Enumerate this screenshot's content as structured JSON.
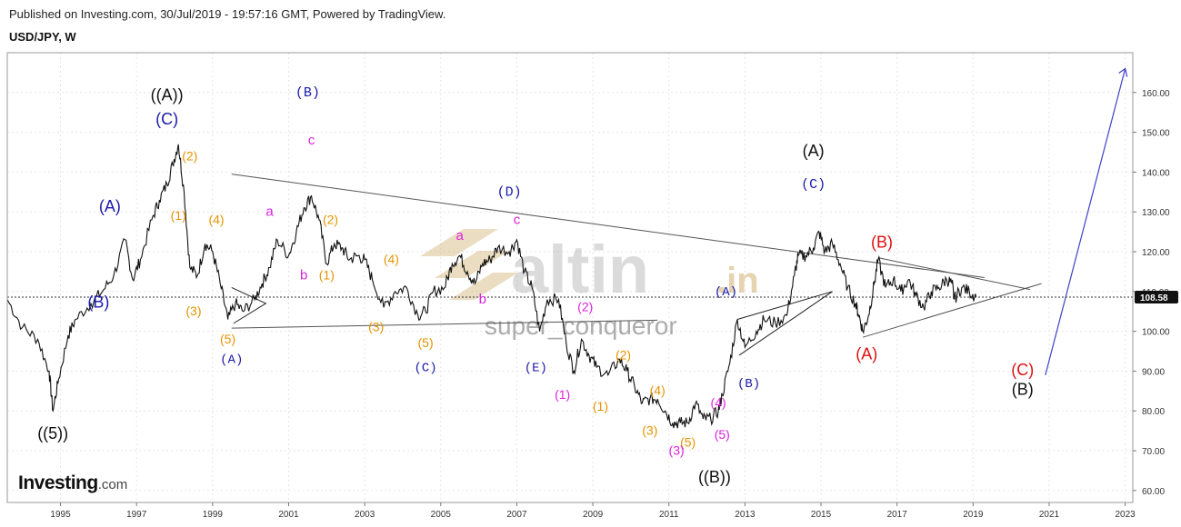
{
  "header": {
    "published": "Published on Investing.com, 30/Jul/2019 - 19:57:16 GMT, Powered by TradingView.",
    "symbol": "USD/JPY, W"
  },
  "logo": {
    "brand": "Investing",
    "domain": ".com"
  },
  "watermark": {
    "main": "altin",
    "tld": ".in",
    "sub": "super_conqueror"
  },
  "colors": {
    "price": "#111111",
    "black_label": "#111111",
    "blue_label": "#1a1aaa",
    "orange_label": "#e59400",
    "magenta_label": "#dd22dd",
    "red_label": "#dd1111",
    "trendline": "#555555",
    "projection": "#4040c8"
  },
  "chart_data": {
    "type": "line",
    "x_axis": {
      "ticks": [
        "1995",
        "1997",
        "1999",
        "2001",
        "2003",
        "2005",
        "2007",
        "2009",
        "2011",
        "2013",
        "2015",
        "2017",
        "2019",
        "2021",
        "2023"
      ],
      "range": [
        1994.1,
        2023.7
      ]
    },
    "y_axis": {
      "ticks": [
        "60.00",
        "70.00",
        "80.00",
        "90.00",
        "100.00",
        "110.00",
        "120.00",
        "130.00",
        "140.00",
        "150.00",
        "160.00"
      ],
      "range": [
        57,
        170
      ],
      "position": "right"
    },
    "last_price": {
      "value": 108.58,
      "label": "108.58"
    },
    "series": [
      {
        "points": [
          [
            1994.1,
            108
          ],
          [
            1994.5,
            101
          ],
          [
            1994.9,
            98
          ],
          [
            1995.2,
            90
          ],
          [
            1995.3,
            80
          ],
          [
            1995.45,
            88
          ],
          [
            1995.7,
            99
          ],
          [
            1995.9,
            103
          ],
          [
            1996.3,
            107
          ],
          [
            1996.6,
            110
          ],
          [
            1996.9,
            114
          ],
          [
            1997.2,
            123
          ],
          [
            1997.4,
            113
          ],
          [
            1997.6,
            118
          ],
          [
            1997.9,
            128
          ],
          [
            1998.1,
            133
          ],
          [
            1998.3,
            137
          ],
          [
            1998.45,
            142
          ],
          [
            1998.6,
            147
          ],
          [
            1998.75,
            135
          ],
          [
            1998.9,
            116
          ],
          [
            1999.1,
            114
          ],
          [
            1999.3,
            122
          ],
          [
            1999.5,
            120
          ],
          [
            1999.7,
            112
          ],
          [
            1999.9,
            103
          ],
          [
            2000.1,
            107
          ],
          [
            2000.3,
            105
          ],
          [
            2000.6,
            108
          ],
          [
            2000.8,
            112
          ],
          [
            2001.0,
            116
          ],
          [
            2001.2,
            123
          ],
          [
            2001.5,
            119
          ],
          [
            2001.7,
            125
          ],
          [
            2001.9,
            131
          ],
          [
            2002.1,
            134
          ],
          [
            2002.3,
            128
          ],
          [
            2002.5,
            117
          ],
          [
            2002.7,
            122
          ],
          [
            2002.9,
            121
          ],
          [
            2003.1,
            118
          ],
          [
            2003.3,
            119
          ],
          [
            2003.5,
            118
          ],
          [
            2003.7,
            113
          ],
          [
            2004.0,
            106
          ],
          [
            2004.3,
            110
          ],
          [
            2004.6,
            111
          ],
          [
            2004.9,
            104
          ],
          [
            2005.1,
            105
          ],
          [
            2005.3,
            110
          ],
          [
            2005.6,
            111
          ],
          [
            2005.8,
            117
          ],
          [
            2006.0,
            119
          ],
          [
            2006.2,
            115
          ],
          [
            2006.4,
            112
          ],
          [
            2006.6,
            117
          ],
          [
            2006.8,
            118
          ],
          [
            2007.0,
            121
          ],
          [
            2007.3,
            120
          ],
          [
            2007.5,
            123
          ],
          [
            2007.7,
            115
          ],
          [
            2007.9,
            111
          ],
          [
            2008.1,
            100
          ],
          [
            2008.3,
            108
          ],
          [
            2008.6,
            108
          ],
          [
            2008.8,
            97
          ],
          [
            2009.0,
            90
          ],
          [
            2009.2,
            98
          ],
          [
            2009.4,
            94
          ],
          [
            2009.6,
            91
          ],
          [
            2009.9,
            89
          ],
          [
            2010.2,
            93
          ],
          [
            2010.4,
            90
          ],
          [
            2010.6,
            86
          ],
          [
            2010.8,
            82
          ],
          [
            2011.0,
            83
          ],
          [
            2011.2,
            83
          ],
          [
            2011.4,
            80
          ],
          [
            2011.6,
            77
          ],
          [
            2011.8,
            77
          ],
          [
            2012.0,
            77
          ],
          [
            2012.2,
            82
          ],
          [
            2012.4,
            78
          ],
          [
            2012.6,
            78
          ],
          [
            2012.8,
            80
          ],
          [
            2012.9,
            84
          ],
          [
            2013.1,
            92
          ],
          [
            2013.3,
            103
          ],
          [
            2013.5,
            96
          ],
          [
            2013.8,
            100
          ],
          [
            2014.0,
            103
          ],
          [
            2014.3,
            102
          ],
          [
            2014.6,
            104
          ],
          [
            2014.8,
            114
          ],
          [
            2014.9,
            119
          ],
          [
            2015.1,
            119
          ],
          [
            2015.3,
            121
          ],
          [
            2015.45,
            125
          ],
          [
            2015.6,
            120
          ],
          [
            2015.8,
            122
          ],
          [
            2016.0,
            117
          ],
          [
            2016.2,
            111
          ],
          [
            2016.4,
            107
          ],
          [
            2016.5,
            104
          ],
          [
            2016.6,
            100
          ],
          [
            2016.75,
            104
          ],
          [
            2016.9,
            112
          ],
          [
            2017.0,
            118
          ],
          [
            2017.2,
            111
          ],
          [
            2017.4,
            113
          ],
          [
            2017.6,
            110
          ],
          [
            2017.8,
            113
          ],
          [
            2018.0,
            109
          ],
          [
            2018.2,
            106
          ],
          [
            2018.4,
            110
          ],
          [
            2018.6,
            111
          ],
          [
            2018.8,
            113
          ],
          [
            2018.95,
            112
          ],
          [
            2019.0,
            108
          ],
          [
            2019.2,
            111
          ],
          [
            2019.4,
            110
          ],
          [
            2019.58,
            108.6
          ]
        ]
      }
    ],
    "trendlines": [
      [
        [
          2000.0,
          139.5
        ],
        [
          2019.8,
          113.5
        ]
      ],
      [
        [
          2000.0,
          100.8
        ],
        [
          2011.2,
          102.8
        ]
      ],
      [
        [
          2017.0,
          118.5
        ],
        [
          2021.0,
          110.5
        ]
      ],
      [
        [
          2016.6,
          98.5
        ],
        [
          2021.3,
          112.0
        ]
      ]
    ],
    "projection": [
      [
        2021.4,
        89
      ],
      [
        2023.5,
        166
      ]
    ],
    "wave_labels": [
      {
        "t": "((A))",
        "x": 1998.3,
        "y": 158,
        "c": "black_label",
        "s": 18
      },
      {
        "t": "(C)",
        "x": 1998.3,
        "y": 152,
        "c": "blue_label",
        "s": 18
      },
      {
        "t": "(A)",
        "x": 1996.8,
        "y": 130,
        "c": "blue_label",
        "s": 18
      },
      {
        "t": "(B)",
        "x": 1996.5,
        "y": 106,
        "c": "blue_label",
        "s": 18
      },
      {
        "t": "((5))",
        "x": 1995.3,
        "y": 73,
        "c": "black_label",
        "s": 18
      },
      {
        "t": "(2)",
        "x": 1998.9,
        "y": 143,
        "c": "orange_label",
        "s": 14
      },
      {
        "t": "(1)",
        "x": 1998.6,
        "y": 128,
        "c": "orange_label",
        "s": 14
      },
      {
        "t": "(4)",
        "x": 1999.6,
        "y": 127,
        "c": "orange_label",
        "s": 14
      },
      {
        "t": "(3)",
        "x": 1999.0,
        "y": 104,
        "c": "orange_label",
        "s": 14
      },
      {
        "t": "(5)",
        "x": 1999.9,
        "y": 97,
        "c": "orange_label",
        "s": 14
      },
      {
        "t": "(A)",
        "x": 2000.0,
        "y": 92,
        "c": "blue_label",
        "s": 14,
        "mono": true
      },
      {
        "t": "a",
        "x": 2001.0,
        "y": 129,
        "c": "magenta_label",
        "s": 15
      },
      {
        "t": "b",
        "x": 2001.9,
        "y": 113,
        "c": "magenta_label",
        "s": 15
      },
      {
        "t": "(B)",
        "x": 2002.0,
        "y": 159,
        "c": "blue_label",
        "s": 15,
        "mono": true
      },
      {
        "t": "c",
        "x": 2002.1,
        "y": 147,
        "c": "magenta_label",
        "s": 15
      },
      {
        "t": "(2)",
        "x": 2002.6,
        "y": 127,
        "c": "orange_label",
        "s": 14
      },
      {
        "t": "(1)",
        "x": 2002.5,
        "y": 113,
        "c": "orange_label",
        "s": 14
      },
      {
        "t": "(4)",
        "x": 2004.2,
        "y": 117,
        "c": "orange_label",
        "s": 14
      },
      {
        "t": "(3)",
        "x": 2003.8,
        "y": 100,
        "c": "orange_label",
        "s": 14
      },
      {
        "t": "(5)",
        "x": 2005.1,
        "y": 96,
        "c": "orange_label",
        "s": 14
      },
      {
        "t": "(C)",
        "x": 2005.1,
        "y": 90,
        "c": "blue_label",
        "s": 14,
        "mono": true
      },
      {
        "t": "a",
        "x": 2006.0,
        "y": 123,
        "c": "magenta_label",
        "s": 15
      },
      {
        "t": "b",
        "x": 2006.6,
        "y": 107,
        "c": "magenta_label",
        "s": 15
      },
      {
        "t": "(D)",
        "x": 2007.3,
        "y": 134,
        "c": "blue_label",
        "s": 15,
        "mono": true
      },
      {
        "t": "c",
        "x": 2007.5,
        "y": 127,
        "c": "magenta_label",
        "s": 15
      },
      {
        "t": "(E)",
        "x": 2008.0,
        "y": 90,
        "c": "blue_label",
        "s": 14,
        "mono": true
      },
      {
        "t": "(2)",
        "x": 2009.3,
        "y": 105,
        "c": "magenta_label",
        "s": 14
      },
      {
        "t": "(1)",
        "x": 2008.7,
        "y": 83,
        "c": "magenta_label",
        "s": 14
      },
      {
        "t": "(2)",
        "x": 2010.3,
        "y": 93,
        "c": "orange_label",
        "s": 14
      },
      {
        "t": "(1)",
        "x": 2009.7,
        "y": 80,
        "c": "orange_label",
        "s": 14
      },
      {
        "t": "(4)",
        "x": 2011.2,
        "y": 84,
        "c": "orange_label",
        "s": 14
      },
      {
        "t": "(3)",
        "x": 2011.0,
        "y": 74,
        "c": "orange_label",
        "s": 14
      },
      {
        "t": "(5)",
        "x": 2012.0,
        "y": 71,
        "c": "orange_label",
        "s": 14
      },
      {
        "t": "(4)",
        "x": 2012.8,
        "y": 81,
        "c": "magenta_label",
        "s": 14
      },
      {
        "t": "(3)",
        "x": 2011.7,
        "y": 69,
        "c": "magenta_label",
        "s": 14
      },
      {
        "t": "(5)",
        "x": 2012.9,
        "y": 73,
        "c": "magenta_label",
        "s": 14
      },
      {
        "t": "((B))",
        "x": 2012.7,
        "y": 62,
        "c": "black_label",
        "s": 18
      },
      {
        "t": "(A)",
        "x": 2013.0,
        "y": 109,
        "c": "blue_label",
        "s": 14,
        "mono": true
      },
      {
        "t": "(B)",
        "x": 2013.6,
        "y": 86,
        "c": "blue_label",
        "s": 14,
        "mono": true
      },
      {
        "t": "(A)",
        "x": 2015.3,
        "y": 144,
        "c": "black_label",
        "s": 18
      },
      {
        "t": "(C)",
        "x": 2015.3,
        "y": 136,
        "c": "blue_label",
        "s": 15,
        "mono": true
      },
      {
        "t": "(B)",
        "x": 2017.1,
        "y": 121,
        "c": "red_label",
        "s": 18
      },
      {
        "t": "(A)",
        "x": 2016.7,
        "y": 93,
        "c": "red_label",
        "s": 18
      },
      {
        "t": "(C)",
        "x": 2020.8,
        "y": 89,
        "c": "red_label",
        "s": 18
      },
      {
        "t": "(B)",
        "x": 2020.8,
        "y": 84,
        "c": "black_label",
        "s": 18
      }
    ]
  }
}
